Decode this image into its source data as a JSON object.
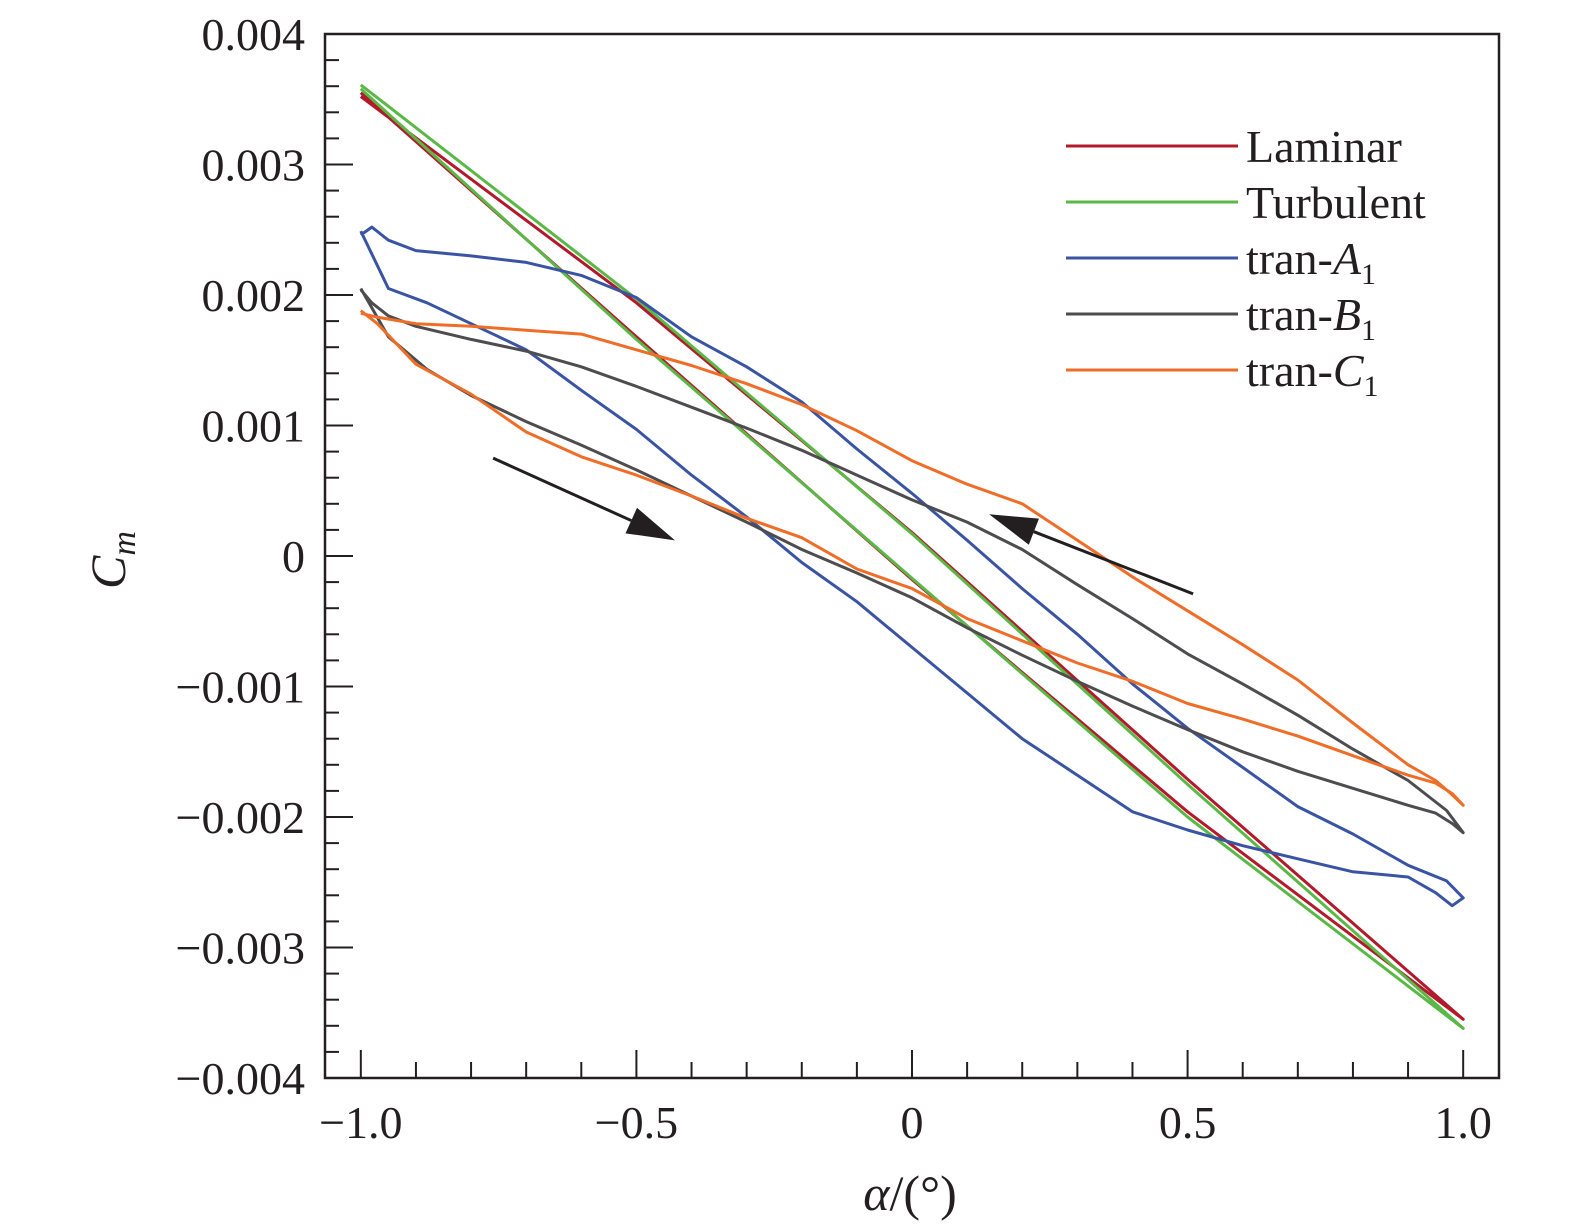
{
  "chart_data": {
    "type": "line",
    "xlabel": {
      "symbol": "α",
      "unit": "/(°)"
    },
    "ylabel": {
      "symbol": "C",
      "subscript": "m"
    },
    "xlim": [
      -1.065,
      1.065
    ],
    "ylim": [
      -0.004,
      0.004
    ],
    "xticks": [
      {
        "value": -1.0,
        "label": "−1.0"
      },
      {
        "value": -0.5,
        "label": "−0.5"
      },
      {
        "value": 0,
        "label": "0"
      },
      {
        "value": 0.5,
        "label": "0.5"
      },
      {
        "value": 1.0,
        "label": "1.0"
      }
    ],
    "yticks": [
      {
        "value": 0.004,
        "label": "0.004"
      },
      {
        "value": 0.003,
        "label": "0.003"
      },
      {
        "value": 0.002,
        "label": "0.002"
      },
      {
        "value": 0.001,
        "label": "0.001"
      },
      {
        "value": 0,
        "label": "0"
      },
      {
        "value": -0.001,
        "label": "−0.001"
      },
      {
        "value": -0.002,
        "label": "−0.002"
      },
      {
        "value": -0.003,
        "label": "−0.003"
      },
      {
        "value": -0.004,
        "label": "−0.004"
      }
    ],
    "legend_position": "top-right",
    "series": [
      {
        "name": "Laminar",
        "label_base": "Laminar",
        "label_italic": "",
        "label_sub": "",
        "color": "#b2192b",
        "x": [
          -1.0,
          -0.5,
          0.0,
          0.5,
          1.0,
          0.5,
          0.0,
          -0.5,
          -1.0
        ],
        "y": [
          0.00355,
          0.00168,
          -0.00018,
          -0.00196,
          -0.00355,
          -0.00171,
          0.00018,
          0.00194,
          0.00352
        ]
      },
      {
        "name": "Turbulent",
        "label_base": "Turbulent",
        "label_italic": "",
        "label_sub": "",
        "color": "#5ab946",
        "x": [
          -1.0,
          -0.5,
          0.0,
          0.5,
          1.0,
          0.5,
          0.0,
          -0.5,
          -1.0
        ],
        "y": [
          0.00358,
          0.00166,
          -0.00017,
          -0.002,
          -0.00362,
          -0.00175,
          0.00017,
          0.00197,
          0.00361
        ]
      },
      {
        "name": "tran-A1",
        "label_base": "tran-",
        "label_italic": "A",
        "label_sub": "1",
        "color": "#3a54a4",
        "x": [
          -1.0,
          -0.95,
          -0.88,
          -0.8,
          -0.7,
          -0.6,
          -0.5,
          -0.4,
          -0.3,
          -0.2,
          -0.1,
          0.0,
          0.1,
          0.2,
          0.3,
          0.4,
          0.5,
          0.6,
          0.7,
          0.8,
          0.9,
          0.95,
          0.98,
          1.0,
          0.97,
          0.9,
          0.8,
          0.7,
          0.6,
          0.5,
          0.4,
          0.3,
          0.2,
          0.1,
          0.0,
          -0.1,
          -0.2,
          -0.3,
          -0.4,
          -0.5,
          -0.6,
          -0.7,
          -0.8,
          -0.9,
          -0.95,
          -0.98,
          -1.0
        ],
        "y": [
          0.00249,
          0.00205,
          0.00194,
          0.00178,
          0.00158,
          0.00127,
          0.00097,
          0.00062,
          0.0003,
          -5e-05,
          -0.00035,
          -0.0007,
          -0.00105,
          -0.0014,
          -0.00168,
          -0.00196,
          -0.0021,
          -0.00222,
          -0.00232,
          -0.00242,
          -0.00246,
          -0.00258,
          -0.00268,
          -0.00262,
          -0.00249,
          -0.00237,
          -0.00213,
          -0.00192,
          -0.00162,
          -0.00132,
          -0.00098,
          -0.0006,
          -0.00025,
          0.00012,
          0.00048,
          0.00082,
          0.00118,
          0.00145,
          0.00168,
          0.00198,
          0.00215,
          0.00225,
          0.0023,
          0.00234,
          0.00242,
          0.00252,
          0.00246
        ]
      },
      {
        "name": "tran-B1",
        "label_base": "tran-",
        "label_italic": "B",
        "label_sub": "1",
        "color": "#4d4d4f",
        "x": [
          -1.0,
          -0.95,
          -0.88,
          -0.8,
          -0.7,
          -0.6,
          -0.5,
          -0.4,
          -0.3,
          -0.2,
          -0.1,
          0.0,
          0.1,
          0.2,
          0.3,
          0.4,
          0.5,
          0.6,
          0.7,
          0.8,
          0.9,
          0.95,
          0.98,
          1.0,
          0.97,
          0.9,
          0.8,
          0.7,
          0.6,
          0.5,
          0.4,
          0.3,
          0.2,
          0.1,
          0.0,
          -0.1,
          -0.2,
          -0.3,
          -0.4,
          -0.5,
          -0.6,
          -0.7,
          -0.8,
          -0.9,
          -0.95,
          -0.98,
          -1.0
        ],
        "y": [
          0.00205,
          0.00168,
          0.00143,
          0.00123,
          0.00103,
          0.00085,
          0.00066,
          0.00046,
          0.00026,
          5e-05,
          -0.00013,
          -0.00032,
          -0.00055,
          -0.00076,
          -0.00096,
          -0.00115,
          -0.00133,
          -0.0015,
          -0.00165,
          -0.00178,
          -0.00191,
          -0.00197,
          -0.00205,
          -0.00212,
          -0.00195,
          -0.00172,
          -0.00148,
          -0.00122,
          -0.00098,
          -0.00075,
          -0.00048,
          -0.00022,
          5e-05,
          0.00026,
          0.00043,
          0.00062,
          0.00081,
          0.00098,
          0.00114,
          0.0013,
          0.00145,
          0.00157,
          0.00166,
          0.00176,
          0.00184,
          0.00194,
          0.00204
        ]
      },
      {
        "name": "tran-C1",
        "label_base": "tran-",
        "label_italic": "C",
        "label_sub": "1",
        "color": "#ef6d27",
        "x": [
          -1.0,
          -0.97,
          -0.9,
          -0.8,
          -0.7,
          -0.6,
          -0.5,
          -0.4,
          -0.3,
          -0.2,
          -0.1,
          0.0,
          0.1,
          0.2,
          0.3,
          0.4,
          0.5,
          0.6,
          0.7,
          0.8,
          0.9,
          0.95,
          0.98,
          1.0,
          0.98,
          0.95,
          0.9,
          0.8,
          0.7,
          0.6,
          0.5,
          0.4,
          0.3,
          0.2,
          0.1,
          0.0,
          -0.1,
          -0.2,
          -0.3,
          -0.4,
          -0.5,
          -0.6,
          -0.7,
          -0.8,
          -0.9,
          -0.97,
          -1.0
        ],
        "y": [
          0.00188,
          0.00178,
          0.00147,
          0.00124,
          0.00095,
          0.00076,
          0.00062,
          0.00046,
          0.00029,
          0.00014,
          -0.0001,
          -0.00025,
          -0.00048,
          -0.00065,
          -0.00082,
          -0.00096,
          -0.00113,
          -0.00125,
          -0.00138,
          -0.00153,
          -0.00168,
          -0.00174,
          -0.00182,
          -0.00191,
          -0.00183,
          -0.00172,
          -0.0016,
          -0.00128,
          -0.00095,
          -0.00068,
          -0.00042,
          -0.00016,
          0.00012,
          0.0004,
          0.00055,
          0.00073,
          0.00096,
          0.00116,
          0.00132,
          0.00146,
          0.00158,
          0.0017,
          0.00173,
          0.00176,
          0.00178,
          0.00183,
          0.00186
        ]
      }
    ],
    "annotations": [
      {
        "type": "arrow",
        "from": [
          -0.76,
          0.00075
        ],
        "to": [
          -0.43,
          0.00012
        ],
        "color": "#231f20"
      },
      {
        "type": "arrow",
        "from": [
          0.51,
          -0.00029
        ],
        "to": [
          0.14,
          0.00032
        ],
        "color": "#231f20"
      }
    ]
  }
}
